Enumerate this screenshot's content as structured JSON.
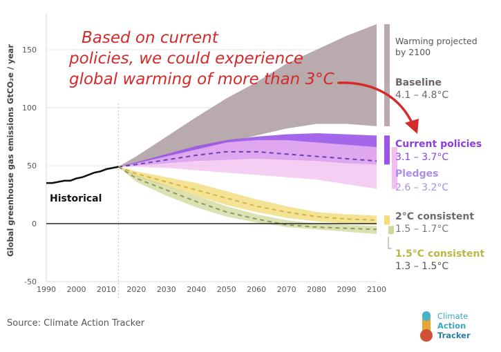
{
  "chart_data": {
    "type": "area",
    "ylabel": "Global greenhouse gas emissions GtCO₂e / year",
    "xlim": [
      1990,
      2100
    ],
    "ylim": [
      -50,
      175
    ],
    "x_ticks": [
      1990,
      2000,
      2010,
      2020,
      2030,
      2040,
      2050,
      2060,
      2070,
      2080,
      2090,
      2100
    ],
    "y_ticks": [
      -50,
      0,
      50,
      100,
      150
    ],
    "annotation": "Based on current policies, we could experience global warming of more than 3°C",
    "projection_header": "Warming projected by 2100",
    "historical": {
      "name": "Historical",
      "x": [
        1990,
        1992,
        1994,
        1996,
        1998,
        2000,
        2002,
        2004,
        2006,
        2008,
        2010,
        2012,
        2014
      ],
      "y": [
        35,
        35,
        36,
        37,
        37,
        39,
        40,
        42,
        44,
        45,
        47,
        48,
        49
      ]
    },
    "series": [
      {
        "name": "Baseline",
        "range_label": "4.1 – 4.8°C",
        "color": "#b9aaad",
        "x": [
          2014,
          2020,
          2030,
          2040,
          2050,
          2060,
          2070,
          2080,
          2090,
          2100
        ],
        "upper": [
          49,
          58,
          75,
          92,
          108,
          122,
          138,
          150,
          162,
          172
        ],
        "lower": [
          49,
          52,
          56,
          62,
          70,
          76,
          82,
          86,
          86,
          84
        ]
      },
      {
        "name": "Current policies",
        "range_label": "3.1 – 3.7°C",
        "color": "#9a55e8",
        "x": [
          2014,
          2020,
          2030,
          2040,
          2050,
          2060,
          2070,
          2080,
          2090,
          2100
        ],
        "upper": [
          49,
          53,
          60,
          67,
          72,
          75,
          77,
          78,
          77,
          76
        ],
        "lower": [
          49,
          50,
          52,
          54,
          55,
          56,
          55,
          54,
          52,
          51
        ],
        "median": [
          49,
          51,
          55,
          59,
          62,
          62,
          60,
          58,
          56,
          54
        ]
      },
      {
        "name": "Pledges",
        "range_label": "2.6 – 3.2°C",
        "color": "#f2bdf0",
        "x": [
          2014,
          2020,
          2030,
          2040,
          2050,
          2060,
          2070,
          2080,
          2090,
          2100
        ],
        "upper": [
          49,
          52,
          58,
          64,
          70,
          72,
          72,
          70,
          68,
          66
        ],
        "lower": [
          49,
          49,
          48,
          46,
          44,
          42,
          40,
          38,
          34,
          30
        ]
      },
      {
        "name": "2°C consistent",
        "range_label": "1.5 – 1.7°C",
        "color": "#f2dc7a",
        "x": [
          2014,
          2020,
          2030,
          2040,
          2050,
          2060,
          2070,
          2080,
          2090,
          2100
        ],
        "upper": [
          49,
          45,
          40,
          35,
          28,
          21,
          15,
          10,
          8,
          7
        ],
        "lower": [
          49,
          40,
          32,
          24,
          16,
          10,
          5,
          2,
          0,
          -1
        ],
        "median": [
          49,
          43,
          36,
          29,
          22,
          15,
          10,
          6,
          4,
          3
        ]
      },
      {
        "name": "1.5°C consistent",
        "range_label": "1.3 – 1.5°C",
        "color": "#cfd79a",
        "x": [
          2014,
          2020,
          2030,
          2040,
          2050,
          2060,
          2070,
          2080,
          2090,
          2100
        ],
        "upper": [
          49,
          42,
          33,
          24,
          15,
          8,
          3,
          0,
          -1,
          -2
        ],
        "lower": [
          49,
          36,
          24,
          14,
          6,
          1,
          -3,
          -5,
          -7,
          -9
        ],
        "median": [
          49,
          39,
          29,
          19,
          10,
          4,
          -1,
          -3,
          -4,
          -5
        ]
      }
    ]
  },
  "footer": {
    "source": "Source: Climate Action Tracker",
    "logo_lines": [
      "Climate",
      "Action",
      "Tracker"
    ]
  }
}
